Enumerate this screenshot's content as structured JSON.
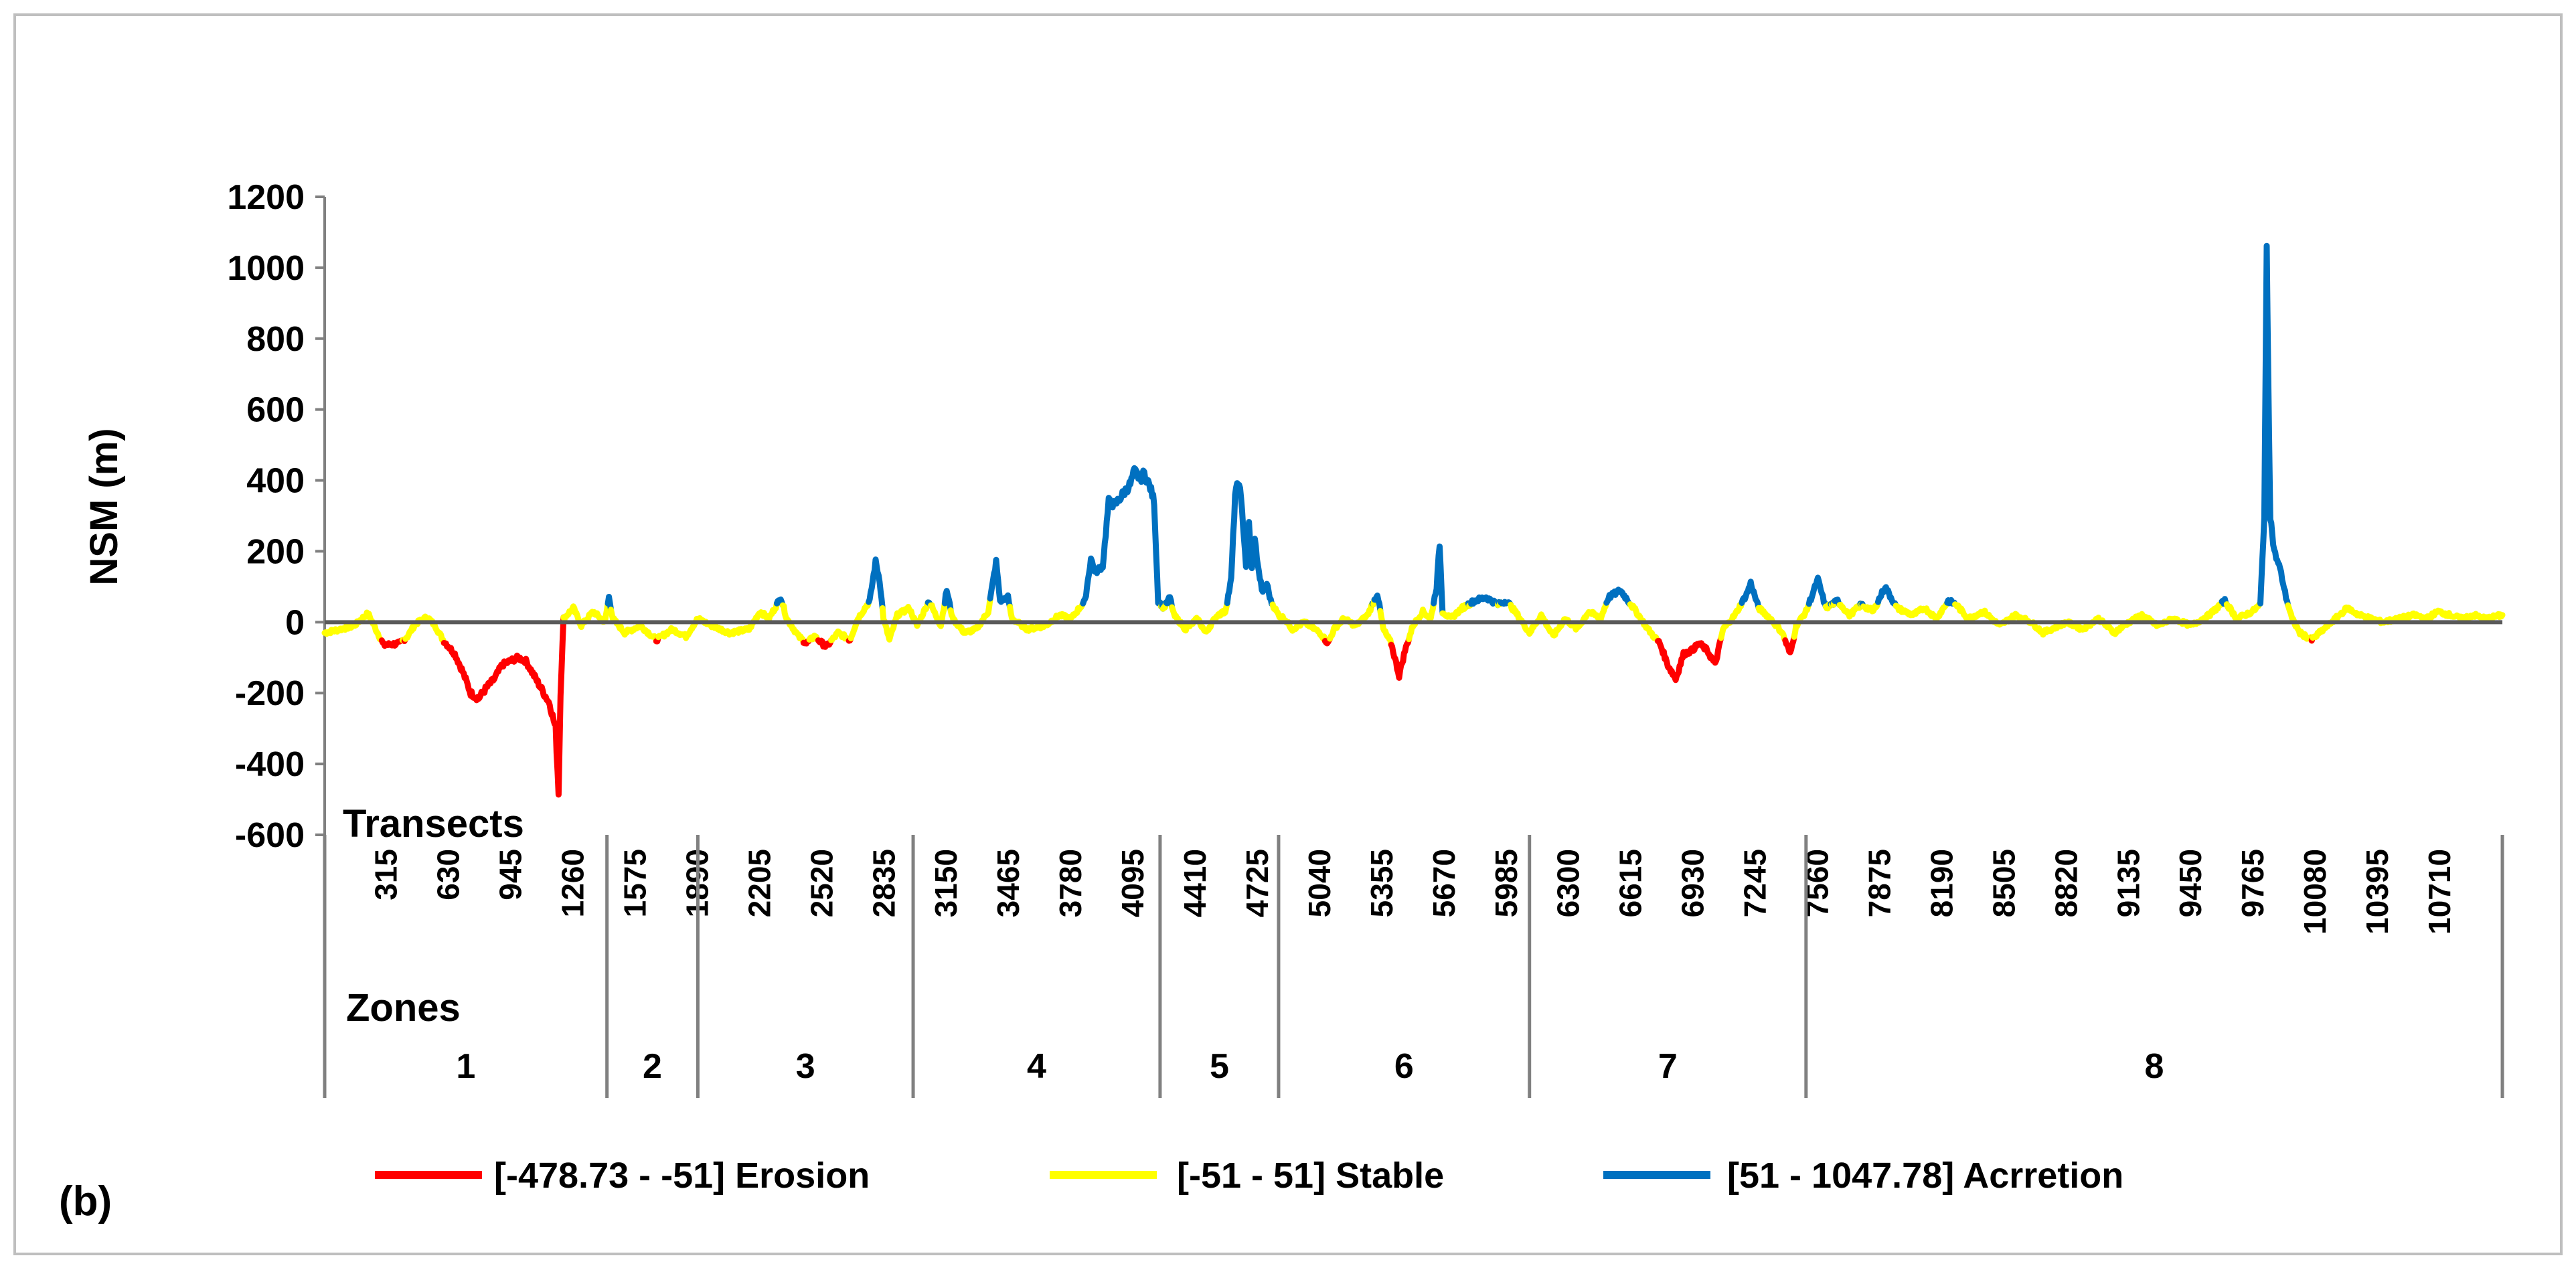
{
  "panel_label": "(b)",
  "chart_data": {
    "type": "line",
    "title": "",
    "ylabel": "NSM (m)",
    "xlabel": "Transects",
    "zones_label": "Zones",
    "ylim": [
      -600,
      1200
    ],
    "yticks": [
      -600,
      -400,
      -200,
      0,
      200,
      400,
      600,
      800,
      1000,
      1200
    ],
    "xlim": [
      1,
      11025
    ],
    "xticks": [
      315,
      630,
      945,
      1260,
      1575,
      1890,
      2205,
      2520,
      2835,
      3150,
      3465,
      3780,
      4095,
      4410,
      4725,
      5040,
      5355,
      5670,
      5985,
      6300,
      6615,
      6930,
      7245,
      7560,
      7875,
      8190,
      8505,
      8820,
      9135,
      9450,
      9765,
      10080,
      10395,
      10710
    ],
    "zone_boundaries": [
      1,
      1430,
      1890,
      2980,
      4230,
      4830,
      6100,
      7500,
      11025
    ],
    "zones": [
      "1",
      "2",
      "3",
      "4",
      "5",
      "6",
      "7",
      "8"
    ],
    "legend": [
      {
        "label": "[-478.73 - -51] Erosion",
        "color": "#FF0000"
      },
      {
        "label": "[-51 - 51] Stable",
        "color": "#FFFF00"
      },
      {
        "label": "[51 - 1047.78] Acrretion",
        "color": "#0070C0"
      }
    ],
    "colors": {
      "erosion": "#FF0000",
      "stable": "#FFFF00",
      "accretion": "#0070C0"
    },
    "classes": {
      "erosion_max": -51,
      "accretion_min": 51
    },
    "series_profile": [
      [
        1,
        -30
      ],
      [
        80,
        -20
      ],
      [
        150,
        -10
      ],
      [
        220,
        25
      ],
      [
        260,
        -20
      ],
      [
        300,
        -65
      ],
      [
        380,
        -60
      ],
      [
        420,
        -40
      ],
      [
        460,
        -5
      ],
      [
        520,
        15
      ],
      [
        560,
        -10
      ],
      [
        600,
        -50
      ],
      [
        660,
        -90
      ],
      [
        700,
        -140
      ],
      [
        740,
        -200
      ],
      [
        780,
        -215
      ],
      [
        820,
        -185
      ],
      [
        860,
        -160
      ],
      [
        900,
        -120
      ],
      [
        940,
        -110
      ],
      [
        980,
        -100
      ],
      [
        1020,
        -110
      ],
      [
        1060,
        -150
      ],
      [
        1100,
        -190
      ],
      [
        1140,
        -230
      ],
      [
        1170,
        -300
      ],
      [
        1185,
        -478.73
      ],
      [
        1195,
        -200
      ],
      [
        1210,
        10
      ],
      [
        1260,
        40
      ],
      [
        1300,
        -10
      ],
      [
        1360,
        30
      ],
      [
        1420,
        0
      ],
      [
        1440,
        70
      ],
      [
        1460,
        10
      ],
      [
        1520,
        -30
      ],
      [
        1600,
        -10
      ],
      [
        1680,
        -50
      ],
      [
        1760,
        -20
      ],
      [
        1830,
        -40
      ],
      [
        1890,
        10
      ],
      [
        1960,
        -10
      ],
      [
        2050,
        -30
      ],
      [
        2150,
        -20
      ],
      [
        2205,
        30
      ],
      [
        2250,
        10
      ],
      [
        2310,
        70
      ],
      [
        2340,
        10
      ],
      [
        2400,
        -40
      ],
      [
        2440,
        -60
      ],
      [
        2480,
        -40
      ],
      [
        2540,
        -70
      ],
      [
        2600,
        -30
      ],
      [
        2660,
        -50
      ],
      [
        2700,
        10
      ],
      [
        2760,
        60
      ],
      [
        2790,
        170
      ],
      [
        2810,
        120
      ],
      [
        2830,
        10
      ],
      [
        2860,
        -50
      ],
      [
        2900,
        20
      ],
      [
        2960,
        40
      ],
      [
        3000,
        -10
      ],
      [
        3060,
        60
      ],
      [
        3120,
        -10
      ],
      [
        3150,
        90
      ],
      [
        3180,
        10
      ],
      [
        3240,
        -30
      ],
      [
        3300,
        -20
      ],
      [
        3360,
        30
      ],
      [
        3400,
        170
      ],
      [
        3420,
        60
      ],
      [
        3460,
        70
      ],
      [
        3480,
        10
      ],
      [
        3560,
        -20
      ],
      [
        3650,
        -10
      ],
      [
        3720,
        20
      ],
      [
        3780,
        10
      ],
      [
        3850,
        60
      ],
      [
        3880,
        180
      ],
      [
        3900,
        140
      ],
      [
        3940,
        160
      ],
      [
        3970,
        340
      ],
      [
        4000,
        330
      ],
      [
        4040,
        360
      ],
      [
        4080,
        390
      ],
      [
        4100,
        425
      ],
      [
        4130,
        405
      ],
      [
        4150,
        420
      ],
      [
        4180,
        380
      ],
      [
        4200,
        340
      ],
      [
        4220,
        60
      ],
      [
        4250,
        40
      ],
      [
        4280,
        70
      ],
      [
        4300,
        20
      ],
      [
        4360,
        -20
      ],
      [
        4420,
        10
      ],
      [
        4460,
        -30
      ],
      [
        4520,
        20
      ],
      [
        4560,
        30
      ],
      [
        4590,
        120
      ],
      [
        4610,
        360
      ],
      [
        4630,
        400
      ],
      [
        4650,
        280
      ],
      [
        4665,
        160
      ],
      [
        4680,
        280
      ],
      [
        4695,
        150
      ],
      [
        4710,
        230
      ],
      [
        4730,
        140
      ],
      [
        4750,
        80
      ],
      [
        4770,
        110
      ],
      [
        4790,
        60
      ],
      [
        4830,
        20
      ],
      [
        4860,
        10
      ],
      [
        4900,
        -20
      ],
      [
        4960,
        0
      ],
      [
        5040,
        -30
      ],
      [
        5080,
        -60
      ],
      [
        5110,
        -20
      ],
      [
        5160,
        10
      ],
      [
        5220,
        -10
      ],
      [
        5280,
        20
      ],
      [
        5330,
        80
      ],
      [
        5360,
        -20
      ],
      [
        5400,
        -60
      ],
      [
        5440,
        -150
      ],
      [
        5470,
        -80
      ],
      [
        5510,
        -10
      ],
      [
        5560,
        30
      ],
      [
        5600,
        10
      ],
      [
        5630,
        100
      ],
      [
        5645,
        220
      ],
      [
        5660,
        30
      ],
      [
        5700,
        10
      ],
      [
        5760,
        40
      ],
      [
        5820,
        60
      ],
      [
        5880,
        70
      ],
      [
        5940,
        50
      ],
      [
        5985,
        60
      ],
      [
        6040,
        20
      ],
      [
        6100,
        -30
      ],
      [
        6160,
        20
      ],
      [
        6220,
        -40
      ],
      [
        6280,
        10
      ],
      [
        6340,
        -20
      ],
      [
        6400,
        30
      ],
      [
        6460,
        10
      ],
      [
        6500,
        70
      ],
      [
        6560,
        90
      ],
      [
        6600,
        60
      ],
      [
        6640,
        30
      ],
      [
        6700,
        -20
      ],
      [
        6760,
        -60
      ],
      [
        6800,
        -120
      ],
      [
        6840,
        -160
      ],
      [
        6880,
        -90
      ],
      [
        6920,
        -80
      ],
      [
        6960,
        -60
      ],
      [
        7000,
        -80
      ],
      [
        7040,
        -120
      ],
      [
        7080,
        -20
      ],
      [
        7140,
        20
      ],
      [
        7200,
        80
      ],
      [
        7220,
        110
      ],
      [
        7260,
        40
      ],
      [
        7320,
        10
      ],
      [
        7380,
        -30
      ],
      [
        7420,
        -90
      ],
      [
        7450,
        -10
      ],
      [
        7500,
        30
      ],
      [
        7560,
        120
      ],
      [
        7600,
        40
      ],
      [
        7660,
        60
      ],
      [
        7720,
        20
      ],
      [
        7780,
        50
      ],
      [
        7840,
        30
      ],
      [
        7900,
        100
      ],
      [
        7960,
        40
      ],
      [
        8040,
        20
      ],
      [
        8100,
        40
      ],
      [
        8160,
        10
      ],
      [
        8220,
        60
      ],
      [
        8260,
        50
      ],
      [
        8320,
        10
      ],
      [
        8400,
        30
      ],
      [
        8480,
        -10
      ],
      [
        8560,
        20
      ],
      [
        8640,
        0
      ],
      [
        8700,
        -30
      ],
      [
        8780,
        -10
      ],
      [
        8820,
        0
      ],
      [
        8900,
        -20
      ],
      [
        8980,
        10
      ],
      [
        9060,
        -30
      ],
      [
        9135,
        0
      ],
      [
        9200,
        20
      ],
      [
        9280,
        -10
      ],
      [
        9360,
        10
      ],
      [
        9450,
        -10
      ],
      [
        9540,
        20
      ],
      [
        9620,
        60
      ],
      [
        9680,
        10
      ],
      [
        9760,
        30
      ],
      [
        9800,
        50
      ],
      [
        9820,
        300
      ],
      [
        9832,
        1047.78
      ],
      [
        9840,
        700
      ],
      [
        9850,
        300
      ],
      [
        9870,
        200
      ],
      [
        9900,
        150
      ],
      [
        9930,
        70
      ],
      [
        9960,
        10
      ],
      [
        10000,
        -30
      ],
      [
        10060,
        -50
      ],
      [
        10120,
        -20
      ],
      [
        10180,
        10
      ],
      [
        10240,
        40
      ],
      [
        10300,
        20
      ],
      [
        10360,
        10
      ],
      [
        10420,
        0
      ],
      [
        10500,
        10
      ],
      [
        10580,
        20
      ],
      [
        10640,
        10
      ],
      [
        10700,
        30
      ],
      [
        10760,
        20
      ],
      [
        10820,
        10
      ],
      [
        10880,
        20
      ],
      [
        10940,
        10
      ],
      [
        11025,
        20
      ]
    ]
  }
}
